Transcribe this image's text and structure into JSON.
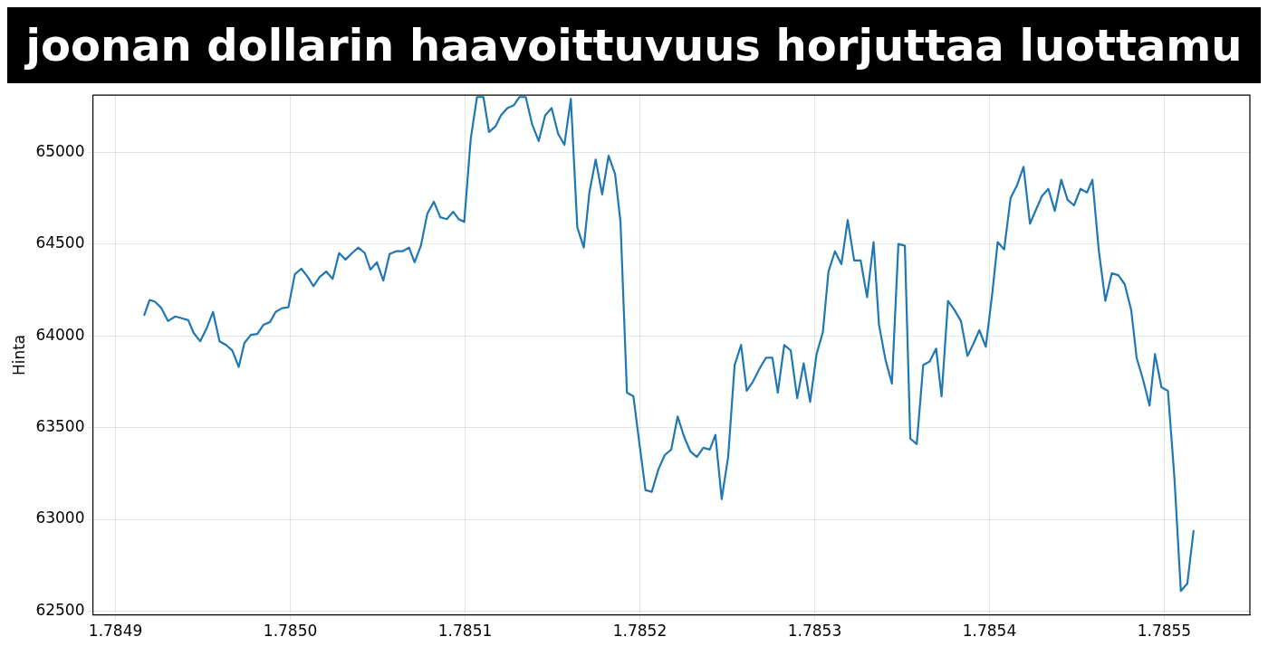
{
  "chart_data": {
    "type": "line",
    "title": "joonan dollarin haavoittuvuus horjuttaa luottamu",
    "ylabel": "Hinta",
    "x": [
      1.7849163,
      1.7849195,
      1.7849226,
      1.7849263,
      1.78493,
      1.7849342,
      1.7849379,
      1.7849416,
      1.7849447,
      1.7849484,
      1.7849521,
      1.7849558,
      1.7849595,
      1.7849632,
      1.7849668,
      1.7849705,
      1.7849737,
      1.7849774,
      1.7849811,
      1.7849847,
      1.7849884,
      1.7849916,
      1.7849953,
      1.7849989,
      1.7850026,
      1.7850063,
      1.78501,
      1.7850132,
      1.7850168,
      1.7850205,
      1.7850242,
      1.7850279,
      1.7850316,
      1.7850353,
      1.7850389,
      1.7850426,
      1.7850458,
      1.7850495,
      1.7850532,
      1.7850568,
      1.7850605,
      1.7850642,
      1.7850679,
      1.7850711,
      1.7850747,
      1.7850784,
      1.7850821,
      1.7850858,
      1.7850895,
      1.7850932,
      1.7850963,
      1.7850995,
      1.7851032,
      1.7851068,
      1.7851105,
      1.7851137,
      1.7851174,
      1.7851205,
      1.7851242,
      1.7851279,
      1.7851311,
      1.7851347,
      1.7851384,
      1.7851421,
      1.7851458,
      1.7851495,
      1.7851532,
      1.7851568,
      1.7851605,
      1.7851642,
      1.7851679,
      1.7851711,
      1.7851747,
      1.7851784,
      1.7851821,
      1.7851858,
      1.7851889,
      1.7851926,
      1.7851963,
      1.7851995,
      1.7852032,
      1.7852068,
      1.7852105,
      1.7852142,
      1.7852179,
      1.7852216,
      1.7852253,
      1.7852289,
      1.7852326,
      1.7852363,
      1.78524,
      1.7852432,
      1.7852468,
      1.7852505,
      1.7852542,
      1.7852579,
      1.7852611,
      1.7852647,
      1.7852684,
      1.7852721,
      1.7852758,
      1.7852789,
      1.7852826,
      1.7852863,
      1.78529,
      1.7852937,
      1.7852974,
      1.7853011,
      1.7853047,
      1.7853079,
      1.7853116,
      1.7853153,
      1.7853189,
      1.7853226,
      1.7853263,
      1.78533,
      1.7853337,
      1.7853368,
      1.7853405,
      1.7853442,
      1.7853479,
      1.7853516,
      1.7853547,
      1.7853584,
      1.7853621,
      1.7853658,
      1.7853695,
      1.7853726,
      1.7853763,
      1.78538,
      1.7853837,
      1.7853874,
      1.7853905,
      1.7853942,
      1.7853979,
      1.7854016,
      1.7854047,
      1.7854084,
      1.7854121,
      1.7854158,
      1.7854195,
      1.7854232,
      1.7854268,
      1.78543,
      1.7854337,
      1.7854374,
      1.7854411,
      1.7854447,
      1.7854484,
      1.7854521,
      1.7854558,
      1.7854589,
      1.7854626,
      1.7854663,
      1.78547,
      1.7854737,
      1.7854774,
      1.7854811,
      1.7854842,
      1.7854879,
      1.7854916,
      1.7854947,
      1.7854984,
      1.7855021,
      1.7855058,
      1.7855095,
      1.7855132,
      1.7855168
    ],
    "series": [
      {
        "color": "#1f77b4",
        "values": [
          64110,
          64195,
          64185,
          64150,
          64080,
          64105,
          64095,
          64085,
          64015,
          63970,
          64040,
          64130,
          63970,
          63950,
          63920,
          63830,
          63960,
          64005,
          64010,
          64060,
          64075,
          64130,
          64150,
          64155,
          64335,
          64365,
          64320,
          64270,
          64320,
          64350,
          64310,
          64450,
          64415,
          64450,
          64480,
          64450,
          64360,
          64400,
          64300,
          64445,
          64460,
          64460,
          64480,
          64400,
          64490,
          64665,
          64730,
          64645,
          64635,
          64675,
          64635,
          64620,
          65070,
          65300,
          65300,
          65110,
          65140,
          65200,
          65240,
          65255,
          65300,
          65300,
          65150,
          65060,
          65200,
          65240,
          65100,
          65040,
          65290,
          64590,
          64480,
          64780,
          64960,
          64770,
          64980,
          64880,
          64620,
          63690,
          63670,
          63430,
          63160,
          63150,
          63270,
          63350,
          63380,
          63560,
          63450,
          63370,
          63340,
          63390,
          63380,
          63460,
          63110,
          63340,
          63840,
          63950,
          63700,
          63750,
          63820,
          63880,
          63880,
          63690,
          63950,
          63920,
          63660,
          63850,
          63640,
          63900,
          64020,
          64350,
          64460,
          64390,
          64630,
          64410,
          64410,
          64210,
          64510,
          64060,
          63870,
          63740,
          64500,
          64490,
          63440,
          63410,
          63840,
          63860,
          63930,
          63670,
          64190,
          64140,
          64080,
          63890,
          63950,
          64030,
          63940,
          64230,
          64510,
          64470,
          64750,
          64820,
          64920,
          64610,
          64690,
          64760,
          64800,
          64680,
          64850,
          64740,
          64710,
          64800,
          64780,
          64850,
          64460,
          64190,
          64340,
          64330,
          64280,
          64140,
          63880,
          63760,
          63620,
          63900,
          63720,
          63700,
          63230,
          62610,
          62650,
          62940
        ]
      }
    ],
    "xlim": [
      1.784887,
      1.785549
    ],
    "xticks": [
      1.7849,
      {
        "value": 1.785,
        "label": "1.7850"
      },
      1.7851,
      1.7852,
      1.7853,
      1.7854,
      1.7855
    ],
    "ylim": [
      62480,
      65310
    ],
    "yticks": [
      62500,
      63000,
      63500,
      64000,
      64500,
      65000
    ],
    "grid": true,
    "marker": "none",
    "line_style": "solid",
    "legend": false
  }
}
